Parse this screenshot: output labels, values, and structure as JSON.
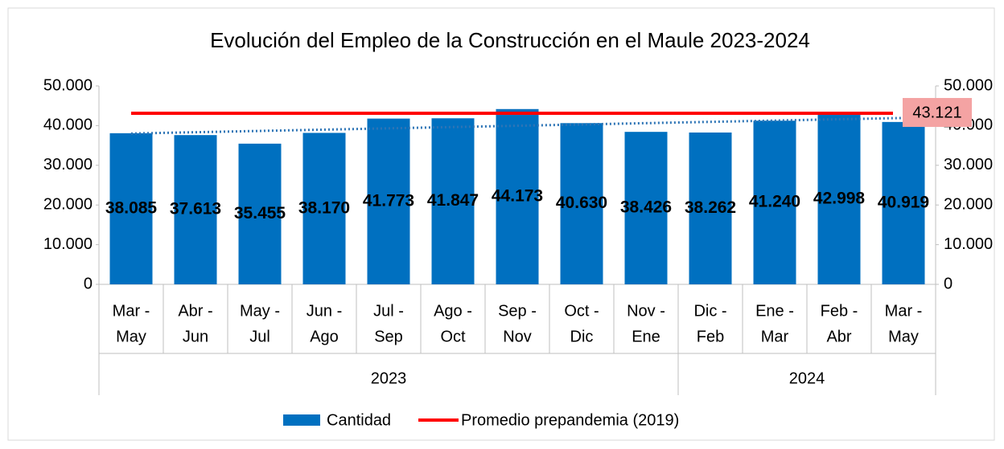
{
  "chart_data": {
    "type": "bar",
    "title": "Evolución del Empleo de la Construcción en el Maule 2023-2024",
    "categories": [
      [
        "Mar -",
        "May"
      ],
      [
        "Abr -",
        "Jun"
      ],
      [
        "May -",
        "Jul"
      ],
      [
        "Jun -",
        "Ago"
      ],
      [
        "Jul -",
        "Sep"
      ],
      [
        "Ago -",
        "Oct"
      ],
      [
        "Sep -",
        "Nov"
      ],
      [
        "Oct -",
        "Dic"
      ],
      [
        "Nov -",
        "Ene"
      ],
      [
        "Dic -",
        "Feb"
      ],
      [
        "Ene -",
        "Mar"
      ],
      [
        "Feb -",
        "Abr"
      ],
      [
        "Mar -",
        "May"
      ]
    ],
    "groups": [
      {
        "label": "2023",
        "count": 9
      },
      {
        "label": "2024",
        "count": 4
      }
    ],
    "series": [
      {
        "name": "Cantidad",
        "color": "#0070c0",
        "values": [
          38085,
          37613,
          35455,
          38170,
          41773,
          41847,
          44173,
          40630,
          38426,
          38262,
          41240,
          42998,
          40919
        ],
        "value_labels": [
          "38.085",
          "37.613",
          "35.455",
          "38.170",
          "41.773",
          "41.847",
          "44.173",
          "40.630",
          "38.426",
          "38.262",
          "41.240",
          "42.998",
          "40.919"
        ]
      },
      {
        "name": "Promedio prepandemia (2019)",
        "color": "#ff0000",
        "value": 43121,
        "value_label": "43.121",
        "label_box_color": "#f4a3a3"
      }
    ],
    "trendline": {
      "color": "#2e75b6",
      "values": [
        38009,
        41928
      ]
    },
    "ylim": [
      0,
      50000
    ],
    "yticks": [
      0,
      {
        "value": 10000,
        "label": "10.000"
      },
      {
        "value": 20000,
        "label": "20.000"
      },
      {
        "value": 30000,
        "label": "30.000"
      },
      {
        "value": 40000,
        "label": "40.000"
      },
      {
        "value": 50000,
        "label": "50.000"
      }
    ],
    "y2lim": [
      0,
      50000
    ],
    "y2ticks": [
      0,
      {
        "value": 10000,
        "label": "10.000"
      },
      {
        "value": 20000,
        "label": "20.000"
      },
      {
        "value": 30000,
        "label": "30.000"
      },
      {
        "value": 40000,
        "label": "40.000"
      },
      {
        "value": 50000,
        "label": "50.000"
      }
    ],
    "grid": false,
    "legend": "bottom"
  }
}
